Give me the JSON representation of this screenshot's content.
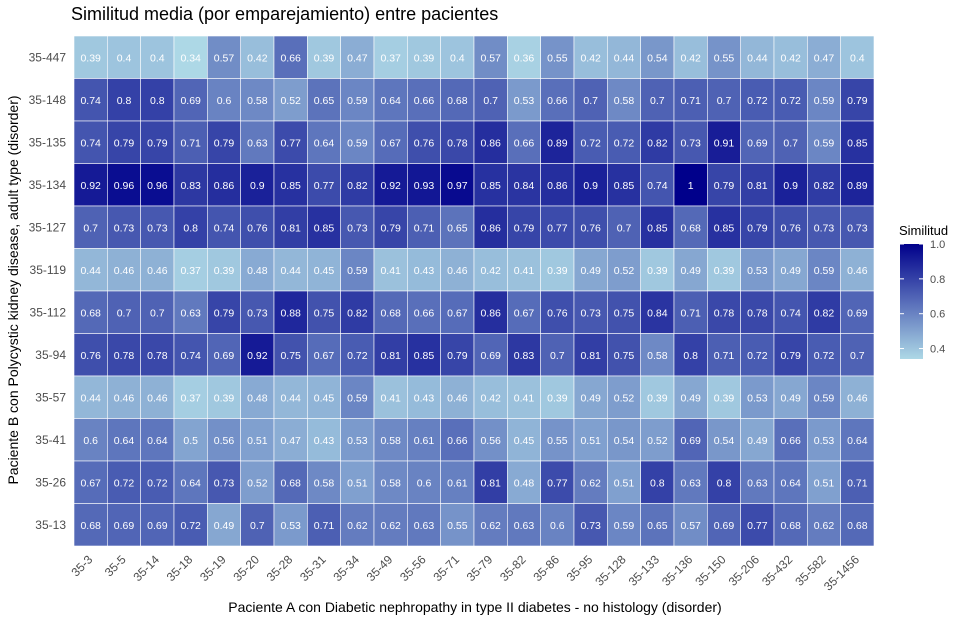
{
  "chart_data": {
    "type": "heatmap",
    "title": "Similitud media (por emparejamiento) entre pacientes",
    "xlabel": "Paciente A con Diabetic nephropathy in type II diabetes - no histology (disorder)",
    "ylabel": "Paciente B con Polycystic kidney disease, adult type (disorder)",
    "x": [
      "35-3",
      "35-5",
      "35-14",
      "35-18",
      "35-19",
      "35-20",
      "35-28",
      "35-31",
      "35-34",
      "35-49",
      "35-56",
      "35-71",
      "35-79",
      "35-82",
      "35-86",
      "35-95",
      "35-128",
      "35-133",
      "35-136",
      "35-150",
      "35-206",
      "35-432",
      "35-582",
      "35-1456"
    ],
    "y": [
      "35-447",
      "35-148",
      "35-135",
      "35-134",
      "35-127",
      "35-119",
      "35-112",
      "35-94",
      "35-57",
      "35-41",
      "35-26",
      "35-13"
    ],
    "values": [
      [
        0.39,
        0.4,
        0.4,
        0.34,
        0.57,
        0.42,
        0.66,
        0.39,
        0.47,
        0.37,
        0.39,
        0.4,
        0.57,
        0.36,
        0.55,
        0.42,
        0.44,
        0.54,
        0.42,
        0.55,
        0.44,
        0.42,
        0.47,
        0.4
      ],
      [
        0.74,
        0.8,
        0.8,
        0.69,
        0.6,
        0.58,
        0.52,
        0.65,
        0.59,
        0.64,
        0.66,
        0.68,
        0.7,
        0.53,
        0.66,
        0.7,
        0.58,
        0.7,
        0.71,
        0.7,
        0.72,
        0.72,
        0.59,
        0.79
      ],
      [
        0.74,
        0.79,
        0.79,
        0.71,
        0.79,
        0.63,
        0.77,
        0.64,
        0.59,
        0.67,
        0.76,
        0.78,
        0.86,
        0.66,
        0.89,
        0.72,
        0.72,
        0.82,
        0.73,
        0.91,
        0.69,
        0.7,
        0.59,
        0.85
      ],
      [
        0.92,
        0.96,
        0.96,
        0.83,
        0.86,
        0.9,
        0.85,
        0.77,
        0.82,
        0.92,
        0.93,
        0.97,
        0.85,
        0.84,
        0.86,
        0.9,
        0.85,
        0.74,
        1,
        0.79,
        0.81,
        0.9,
        0.82,
        0.89
      ],
      [
        0.7,
        0.73,
        0.73,
        0.8,
        0.74,
        0.76,
        0.81,
        0.85,
        0.73,
        0.79,
        0.71,
        0.65,
        0.86,
        0.79,
        0.77,
        0.76,
        0.7,
        0.85,
        0.68,
        0.85,
        0.79,
        0.76,
        0.73,
        0.73
      ],
      [
        0.44,
        0.46,
        0.46,
        0.37,
        0.39,
        0.48,
        0.44,
        0.45,
        0.59,
        0.41,
        0.43,
        0.46,
        0.42,
        0.41,
        0.39,
        0.49,
        0.52,
        0.39,
        0.49,
        0.39,
        0.53,
        0.49,
        0.59,
        0.46
      ],
      [
        0.68,
        0.7,
        0.7,
        0.63,
        0.79,
        0.73,
        0.88,
        0.75,
        0.82,
        0.68,
        0.66,
        0.67,
        0.86,
        0.67,
        0.76,
        0.73,
        0.75,
        0.84,
        0.71,
        0.78,
        0.78,
        0.74,
        0.82,
        0.69
      ],
      [
        0.76,
        0.78,
        0.78,
        0.74,
        0.69,
        0.92,
        0.75,
        0.67,
        0.72,
        0.81,
        0.85,
        0.79,
        0.69,
        0.83,
        0.7,
        0.81,
        0.75,
        0.58,
        0.8,
        0.71,
        0.72,
        0.79,
        0.72,
        0.7
      ],
      [
        0.44,
        0.46,
        0.46,
        0.37,
        0.39,
        0.48,
        0.44,
        0.45,
        0.59,
        0.41,
        0.43,
        0.46,
        0.42,
        0.41,
        0.39,
        0.49,
        0.52,
        0.39,
        0.49,
        0.39,
        0.53,
        0.49,
        0.59,
        0.46
      ],
      [
        0.6,
        0.64,
        0.64,
        0.5,
        0.56,
        0.51,
        0.47,
        0.43,
        0.53,
        0.58,
        0.61,
        0.66,
        0.56,
        0.45,
        0.55,
        0.51,
        0.54,
        0.52,
        0.69,
        0.54,
        0.49,
        0.66,
        0.53,
        0.64
      ],
      [
        0.67,
        0.72,
        0.72,
        0.64,
        0.73,
        0.52,
        0.68,
        0.58,
        0.51,
        0.58,
        0.6,
        0.61,
        0.81,
        0.48,
        0.77,
        0.62,
        0.51,
        0.8,
        0.63,
        0.8,
        0.63,
        0.64,
        0.51,
        0.71
      ],
      [
        0.68,
        0.69,
        0.69,
        0.72,
        0.49,
        0.7,
        0.53,
        0.71,
        0.62,
        0.62,
        0.63,
        0.55,
        0.62,
        0.63,
        0.6,
        0.73,
        0.59,
        0.65,
        0.57,
        0.69,
        0.77,
        0.68,
        0.62,
        0.68
      ]
    ],
    "value_range": [
      0.34,
      1.0
    ],
    "colors": {
      "low": "#add8e6",
      "high": "#00008b"
    },
    "grid": false,
    "legend": {
      "title": "Similitud",
      "placement": "right",
      "ticks": [
        1.0,
        0.8,
        0.6,
        0.4
      ],
      "tick_labels": [
        "1.0",
        "0.8",
        "0.6",
        "0.4"
      ]
    }
  }
}
